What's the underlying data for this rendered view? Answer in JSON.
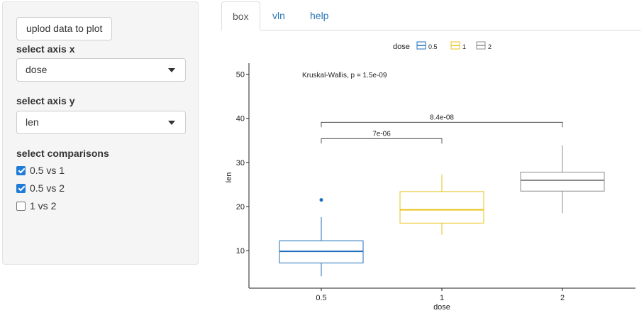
{
  "sidebar": {
    "upload_label": "uplod data to plot",
    "axis_x_label": "select axis x",
    "axis_x_value": "dose",
    "axis_y_label": "select axis y",
    "axis_y_value": "len",
    "comparisons_label": "select comparisons",
    "comparisons": [
      {
        "label": "0.5 vs 1",
        "checked": true
      },
      {
        "label": "0.5 vs 2",
        "checked": true
      },
      {
        "label": "1 vs 2",
        "checked": false
      }
    ]
  },
  "tabs": [
    {
      "label": "box",
      "active": true
    },
    {
      "label": "vln",
      "active": false
    },
    {
      "label": "help",
      "active": false
    }
  ],
  "colors": {
    "accent": "#1f7bd6",
    "link": "#2a76b5"
  },
  "chart_data": {
    "type": "box",
    "xlabel": "dose",
    "ylabel": "len",
    "legend_title": "dose",
    "legend_position": "top",
    "categories": [
      "0.5",
      "1",
      "2"
    ],
    "colors": [
      "#1f6fbd",
      "#e9c31a",
      "#8c8c8c"
    ],
    "boxes": [
      {
        "name": "0.5",
        "min": 4.2,
        "q1": 7.2,
        "median": 9.85,
        "q3": 12.25,
        "max": 17.6,
        "outliers": [
          21.5
        ]
      },
      {
        "name": "1",
        "min": 13.6,
        "q1": 16.25,
        "median": 19.25,
        "q3": 23.4,
        "max": 27.3,
        "outliers": []
      },
      {
        "name": "2",
        "min": 18.5,
        "q1": 23.5,
        "median": 25.95,
        "q3": 27.8,
        "max": 33.9,
        "outliers": []
      }
    ],
    "y_ticks": [
      10,
      20,
      30,
      40,
      50
    ],
    "ylim": [
      1.5,
      52.5
    ],
    "annotation": "Kruskal-Wallis, p = 1.5e-09",
    "comparisons": [
      {
        "from": "0.5",
        "to": "1",
        "label": "7e-06",
        "y": 35.4
      },
      {
        "from": "0.5",
        "to": "2",
        "label": "8.4e-08",
        "y": 39.1
      }
    ]
  }
}
